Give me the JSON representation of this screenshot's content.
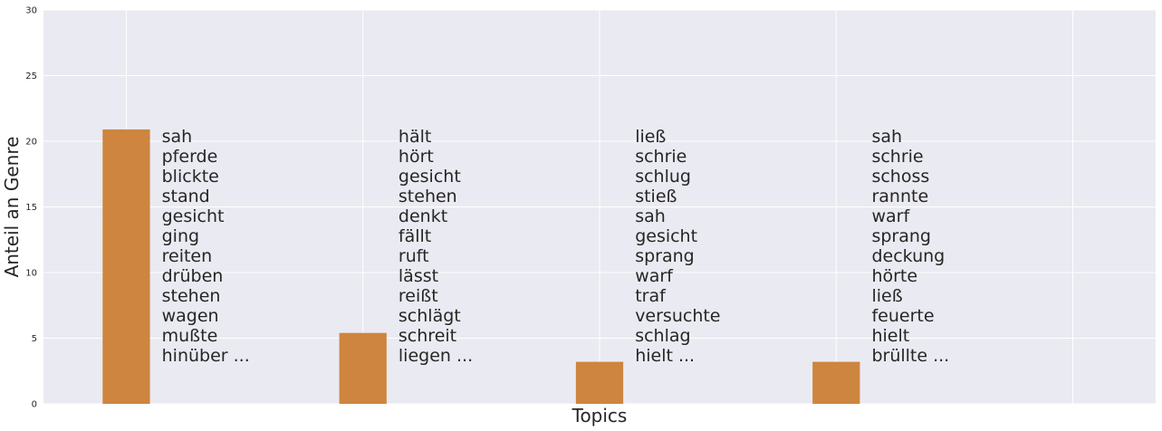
{
  "chart_data": {
    "type": "bar",
    "title": "",
    "xlabel": "Topics",
    "ylabel": "Anteil an Genre",
    "ylim": [
      0,
      30
    ],
    "yticks": [
      0,
      5,
      10,
      15,
      20,
      25,
      30
    ],
    "grid": true,
    "bar_color": "#cd853f",
    "background_color": "#eaeaf2",
    "grid_color": "#ffffff",
    "bars": [
      {
        "value": 20.9,
        "words": [
          "sah",
          "pferde",
          "blickte",
          "stand",
          "gesicht",
          "ging",
          "reiten",
          "drüben",
          "stehen",
          "wagen",
          "mußte",
          "hinüber ..."
        ]
      },
      {
        "value": 5.4,
        "words": [
          "hält",
          "hört",
          "gesicht",
          "stehen",
          "denkt",
          "fällt",
          "ruft",
          "lässt",
          "reißt",
          "schlägt",
          "schreit",
          "liegen ..."
        ]
      },
      {
        "value": 3.2,
        "words": [
          "ließ",
          "schrie",
          "schlug",
          "stieß",
          "sah",
          "gesicht",
          "sprang",
          "warf",
          "traf",
          "versuchte",
          "schlag",
          "hielt ..."
        ]
      },
      {
        "value": 3.2,
        "words": [
          "sah",
          "schrie",
          "schoss",
          "rannte",
          "warf",
          "sprang",
          "deckung",
          "hörte",
          "ließ",
          "feuerte",
          "hielt",
          "brüllte ..."
        ]
      }
    ]
  }
}
